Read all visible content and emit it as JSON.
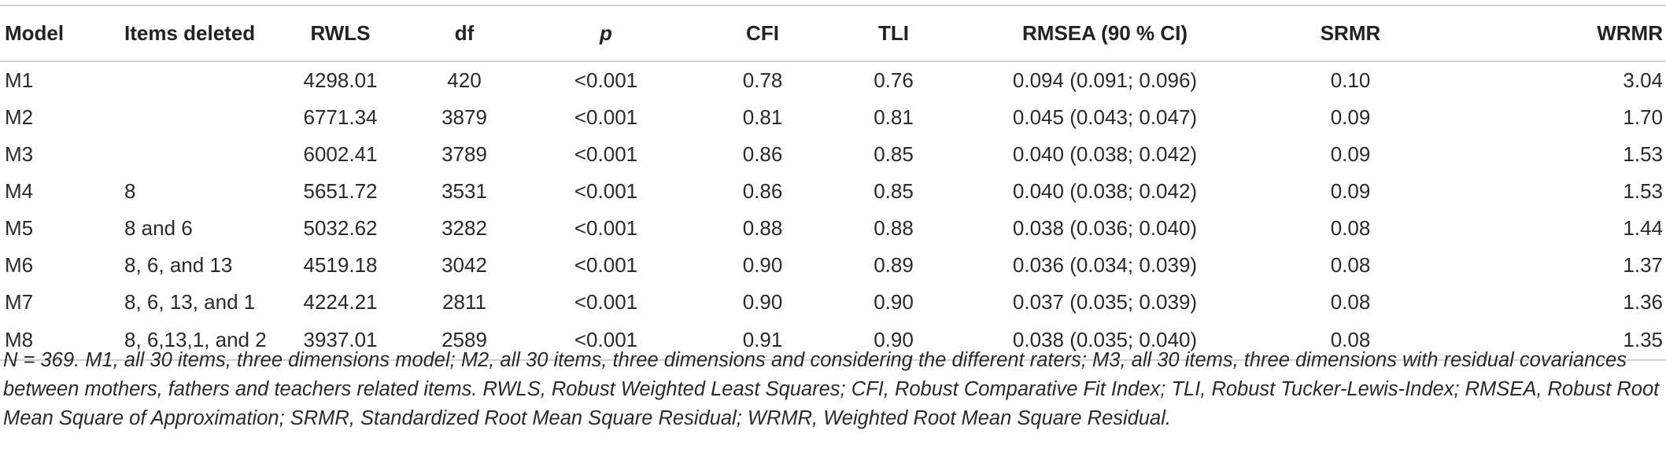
{
  "table": {
    "headers": [
      "Model",
      "Items deleted",
      "RWLS",
      "df",
      "p",
      "CFI",
      "TLI",
      "RMSEA (90 % CI)",
      "SRMR",
      "WRMR"
    ],
    "rows": [
      [
        "M1",
        "",
        "4298.01",
        "420",
        "<0.001",
        "0.78",
        "0.76",
        "0.094 (0.091; 0.096)",
        "0.10",
        "3.04"
      ],
      [
        "M2",
        "",
        "6771.34",
        "3879",
        "<0.001",
        "0.81",
        "0.81",
        "0.045 (0.043; 0.047)",
        "0.09",
        "1.70"
      ],
      [
        "M3",
        "",
        "6002.41",
        "3789",
        "<0.001",
        "0.86",
        "0.85",
        "0.040 (0.038; 0.042)",
        "0.09",
        "1.53"
      ],
      [
        "M4",
        "8",
        "5651.72",
        "3531",
        "<0.001",
        "0.86",
        "0.85",
        "0.040 (0.038; 0.042)",
        "0.09",
        "1.53"
      ],
      [
        "M5",
        "8 and 6",
        "5032.62",
        "3282",
        "<0.001",
        "0.88",
        "0.88",
        "0.038 (0.036; 0.040)",
        "0.08",
        "1.44"
      ],
      [
        "M6",
        "8, 6, and 13",
        "4519.18",
        "3042",
        "<0.001",
        "0.90",
        "0.89",
        "0.036 (0.034; 0.039)",
        "0.08",
        "1.37"
      ],
      [
        "M7",
        "8, 6, 13, and 1",
        "4224.21",
        "2811",
        "<0.001",
        "0.90",
        "0.90",
        "0.037 (0.035; 0.039)",
        "0.08",
        "1.36"
      ],
      [
        "M8",
        "8, 6,13,1, and 2",
        "3937.01",
        "2589",
        "<0.001",
        "0.91",
        "0.90",
        "0.038 (0.035; 0.040)",
        "0.08",
        "1.35"
      ]
    ]
  },
  "footnote": "N = 369. M1, all 30 items, three dimensions model; M2, all 30 items, three dimensions and considering the different raters; M3, all 30 items, three dimensions with residual covariances between mothers, fathers and teachers related items. RWLS, Robust Weighted Least Squares; CFI, Robust Comparative Fit Index; TLI, Robust Tucker-Lewis-Index; RMSEA, Robust Root Mean Square of Approximation; SRMR, Standardized Root Mean Square Residual; WRMR, Weighted Root Mean Square Residual."
}
